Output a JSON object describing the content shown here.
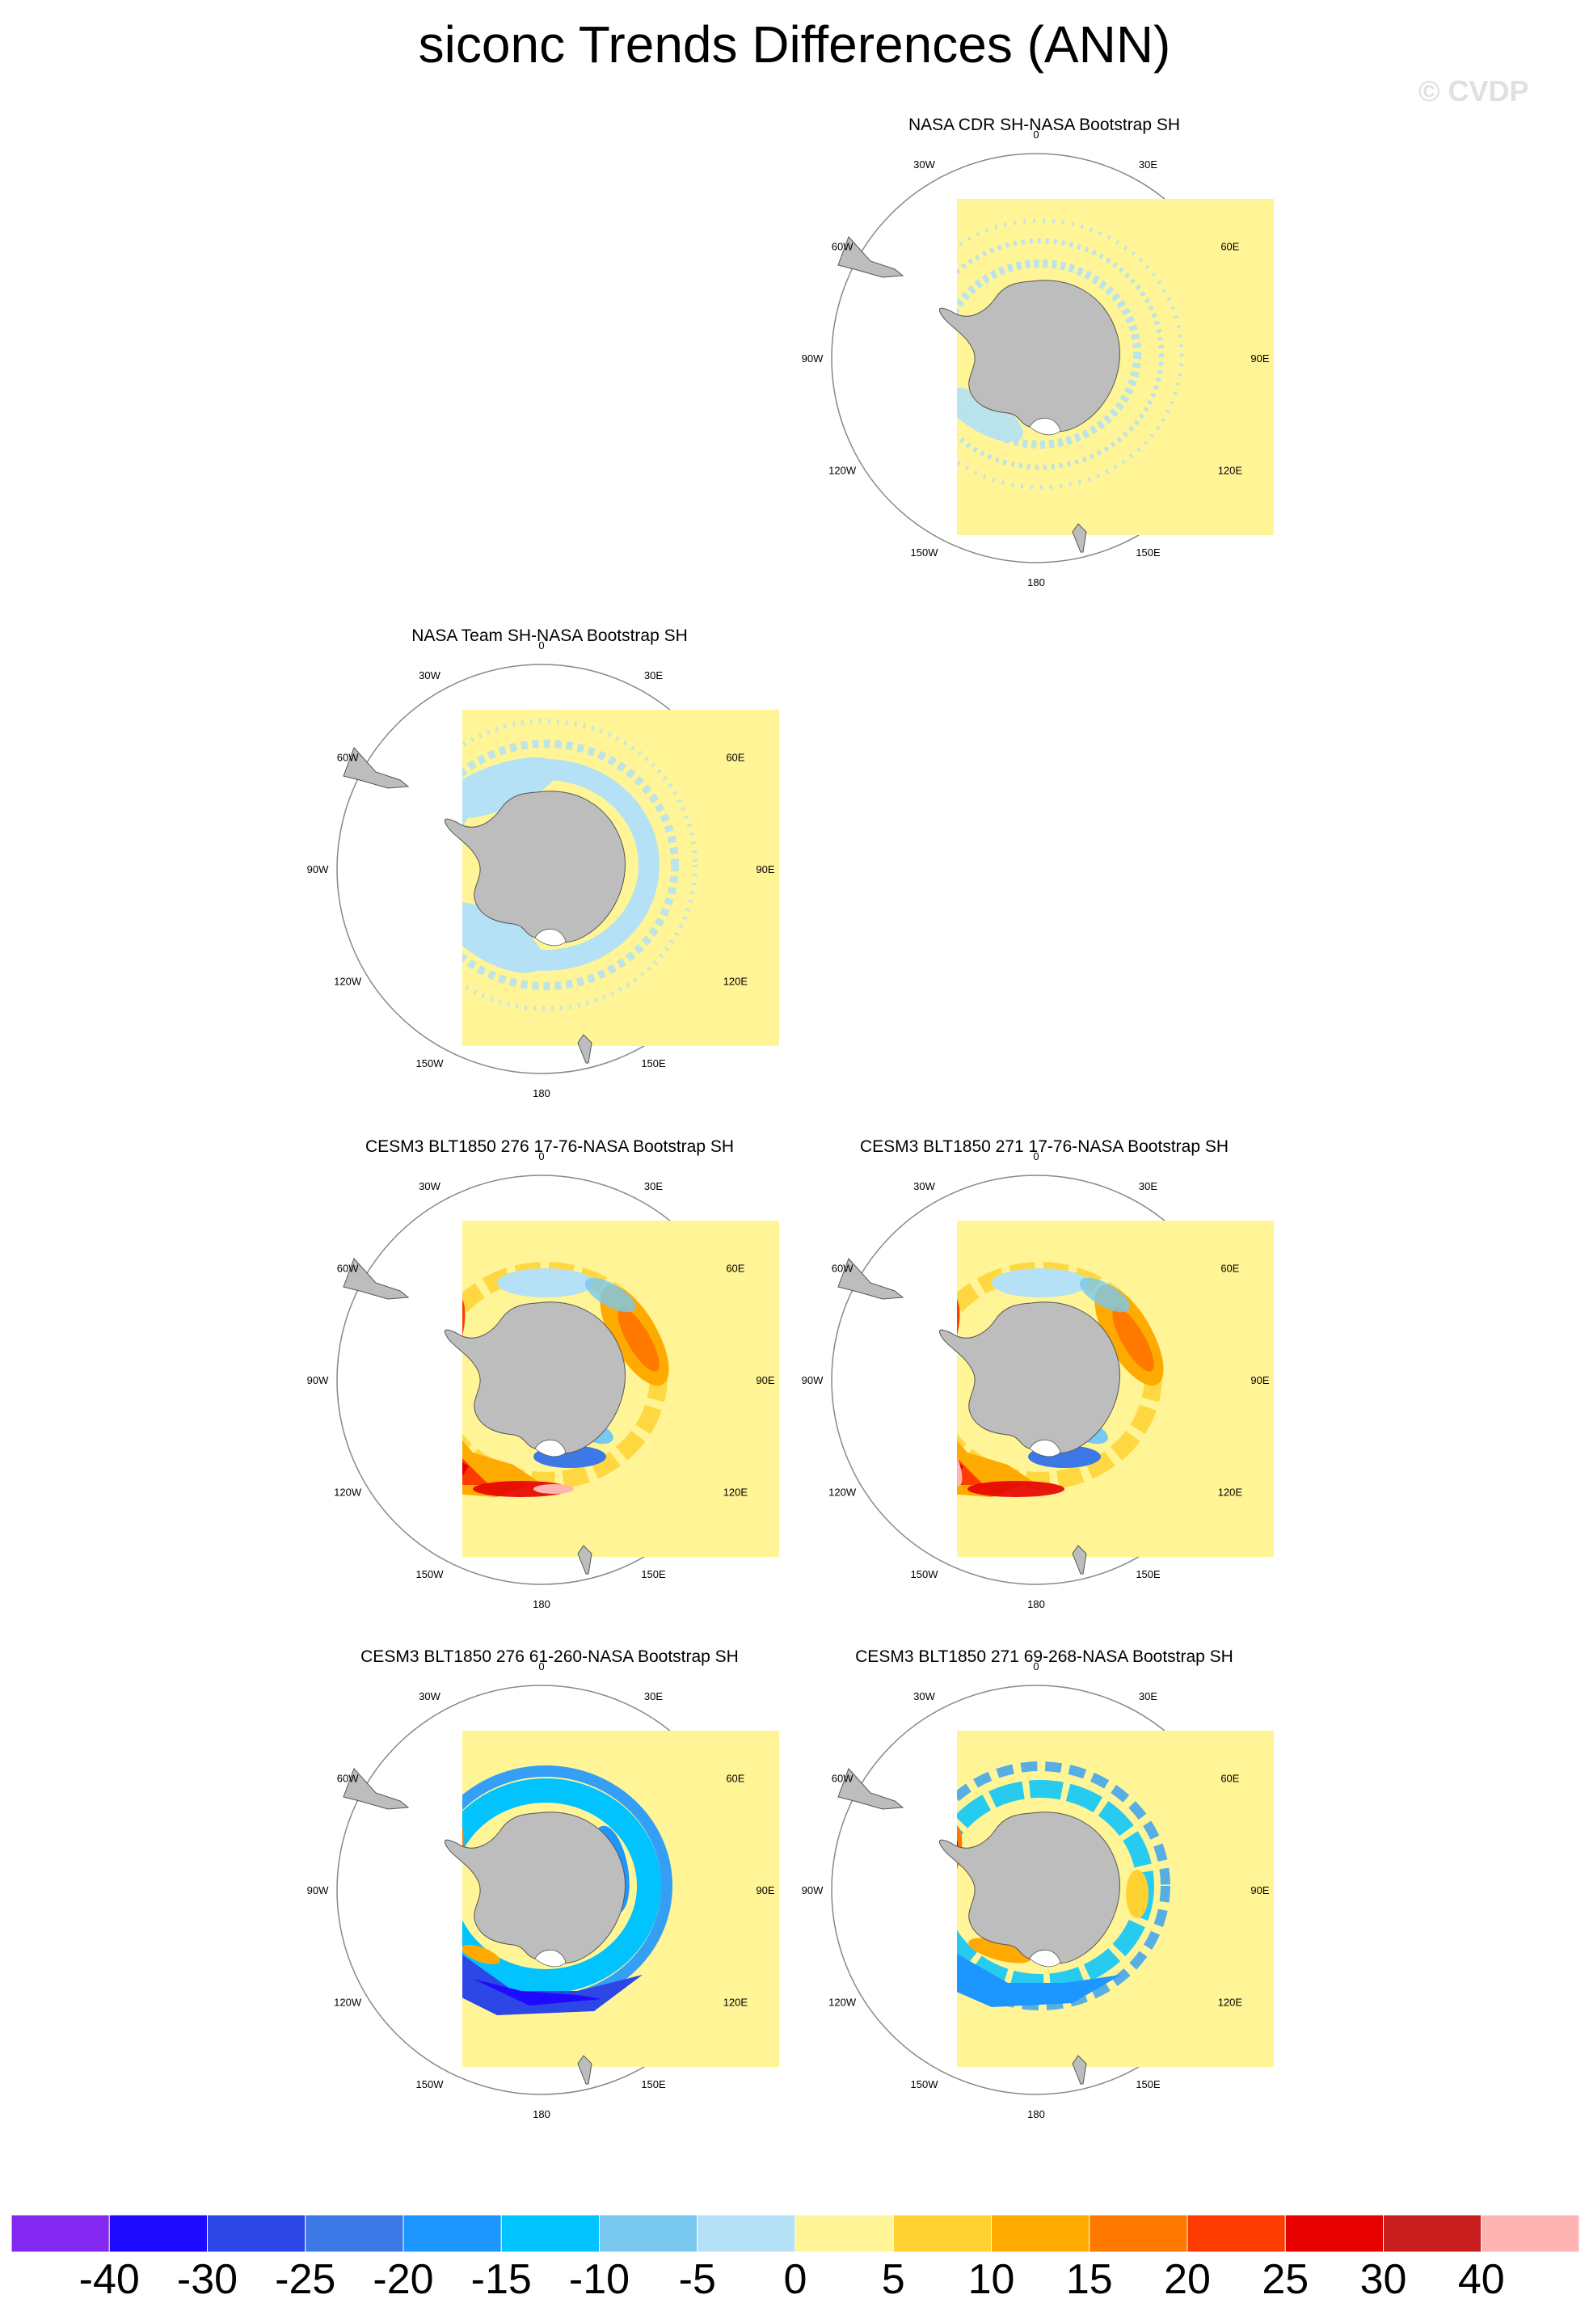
{
  "title": "siconc Trends Differences (ANN)",
  "watermark": "© CVDP",
  "lon_labels": [
    "0",
    "30E",
    "60E",
    "90E",
    "120E",
    "150E",
    "180",
    "150W",
    "120W",
    "90W",
    "60W",
    "30W"
  ],
  "panels": [
    {
      "id": "p1",
      "title": "NASA CDR SH-NASA Bootstrap SH",
      "pattern": "weak-negative-ring"
    },
    {
      "id": "p2",
      "title": "NASA Team SH-NASA Bootstrap SH",
      "pattern": "broad-negative-ring"
    },
    {
      "id": "p3",
      "title": "CESM3 BLT1850 276 17-76-NASA Bootstrap SH",
      "pattern": "strong-positive-ross-amundsen"
    },
    {
      "id": "p4",
      "title": "CESM3 BLT1850 271 17-76-NASA Bootstrap SH",
      "pattern": "strong-positive-ross-amundsen"
    },
    {
      "id": "p5",
      "title": "CESM3 BLT1850 276 61-260-NASA Bootstrap SH",
      "pattern": "strong-negative-ring"
    },
    {
      "id": "p6",
      "title": "CESM3 BLT1850 271 69-268-NASA Bootstrap SH",
      "pattern": "moderate-negative-ring"
    }
  ],
  "chart_data": {
    "type": "heatmap",
    "projection": "south polar stereographic",
    "variable": "siconc",
    "season": "ANN",
    "colorbar": {
      "labels": [
        "-40",
        "-30",
        "-25",
        "-20",
        "-15",
        "-10",
        "-5",
        "0",
        "5",
        "10",
        "15",
        "20",
        "25",
        "30",
        "40"
      ],
      "colors": [
        "#8228f0",
        "#1e0aff",
        "#2d46e6",
        "#3c78e6",
        "#1e96ff",
        "#00c3ff",
        "#78c8f0",
        "#b4e1f5",
        "#fff596",
        "#ffd232",
        "#ffaa00",
        "#ff7800",
        "#ff3c00",
        "#e60000",
        "#c81e1e",
        "#ffb4b4"
      ]
    }
  }
}
